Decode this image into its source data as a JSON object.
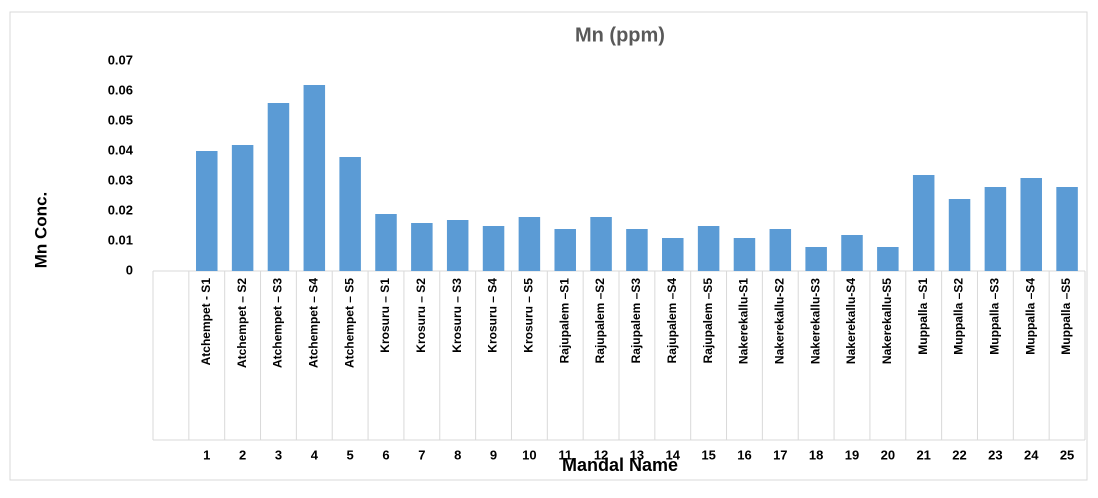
{
  "chart_data": {
    "type": "bar",
    "title": "Mn (ppm)",
    "x_label": "Mandal Name",
    "y_label": "Mn Conc.",
    "categories": [
      null,
      "Atchempet - S1",
      "Atchempet – S2",
      "Atchempet – S3",
      "Atchempet – S4",
      "Atchempet – S5",
      "Krosuru – S1",
      "Krosuru – S2",
      "Krosuru – S3",
      "Krosuru – S4",
      "Krosuru – S5",
      "Rajupalem –S1",
      "Rajupalem –S2",
      "Rajupalem –S3",
      "Rajupalem –S4",
      "Rajupalem –S5",
      "Nakerekallu-S1",
      "Nakerekallu-S2",
      "Nakerekallu-S3",
      "Nakerekallu-S4",
      "Nakerekallu-S5",
      "Muppalla –S1",
      "Muppalla –S2",
      "Muppalla –S3",
      "Muppalla –S4",
      "Muppalla –S5"
    ],
    "category_numbers": [
      null,
      1,
      2,
      3,
      4,
      5,
      6,
      7,
      8,
      9,
      10,
      11,
      12,
      13,
      14,
      15,
      16,
      17,
      18,
      19,
      20,
      21,
      22,
      23,
      24,
      25
    ],
    "values": [
      null,
      0.04,
      0.042,
      0.056,
      0.062,
      0.038,
      0.019,
      0.016,
      0.017,
      0.015,
      0.018,
      0.014,
      0.018,
      0.014,
      0.011,
      0.015,
      0.011,
      0.014,
      0.008,
      0.012,
      0.008,
      0.032,
      0.024,
      0.028,
      0.031,
      0.028
    ],
    "color": "#5b9bd5",
    "ylim": [
      0,
      0.07
    ],
    "yticks": [
      0,
      0.01,
      0.02,
      0.03,
      0.04,
      0.05,
      0.06,
      0.07
    ],
    "grid": false
  }
}
